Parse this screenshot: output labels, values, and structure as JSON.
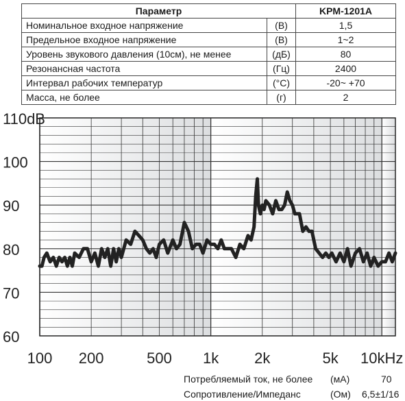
{
  "spec_table": {
    "header_param": "Параметр",
    "header_model": "KPM-1201A",
    "rows": [
      {
        "param": "Номинальное входное напряжение",
        "unit": "(В)",
        "value": "1,5"
      },
      {
        "param": "Предельное входное напряжение",
        "unit": "(В)",
        "value": "1~2"
      },
      {
        "param": "Уровень звукового давления (10см), не менее",
        "unit": "(дБ)",
        "value": "80"
      },
      {
        "param": "Резонансная частота",
        "unit": "(Гц)",
        "value": "2400"
      },
      {
        "param": "Интервал рабочих температур",
        "unit": "(°C)",
        "value": "-20~ +70"
      },
      {
        "param": "Масса, не более",
        "unit": "(г)",
        "value": "2"
      }
    ]
  },
  "chart_data": {
    "type": "line",
    "x_scale": "log",
    "xlim": [
      100,
      12000
    ],
    "ylim": [
      60,
      110
    ],
    "grid": true,
    "y_ticks": [
      {
        "value": 110,
        "label": "110dB"
      },
      {
        "value": 100,
        "label": "100"
      },
      {
        "value": 90,
        "label": "90"
      },
      {
        "value": 80,
        "label": "80"
      },
      {
        "value": 70,
        "label": "70"
      },
      {
        "value": 60,
        "label": "60"
      }
    ],
    "x_ticks": [
      {
        "value": 100,
        "label": "100"
      },
      {
        "value": 200,
        "label": "200"
      },
      {
        "value": 500,
        "label": "500"
      },
      {
        "value": 1000,
        "label": "1k"
      },
      {
        "value": 2000,
        "label": "2k"
      },
      {
        "value": 5000,
        "label": "5k"
      },
      {
        "value": 10000,
        "label": "10kHz"
      }
    ],
    "series": [
      {
        "line_color": "#222222",
        "x": [
          100,
          103,
          106,
          110,
          115,
          120,
          125,
          130,
          135,
          140,
          145,
          150,
          155,
          160,
          170,
          180,
          190,
          200,
          210,
          220,
          230,
          240,
          250,
          260,
          270,
          280,
          290,
          300,
          320,
          340,
          360,
          380,
          400,
          420,
          440,
          460,
          480,
          500,
          530,
          560,
          600,
          630,
          660,
          700,
          740,
          780,
          820,
          860,
          900,
          950,
          1000,
          1050,
          1100,
          1150,
          1200,
          1260,
          1320,
          1400,
          1480,
          1560,
          1650,
          1720,
          1790,
          1830,
          1870,
          1900,
          1950,
          2000,
          2050,
          2100,
          2200,
          2300,
          2400,
          2500,
          2600,
          2700,
          2800,
          2900,
          3000,
          3100,
          3200,
          3300,
          3450,
          3600,
          3750,
          3900,
          4100,
          4300,
          4500,
          4700,
          4900,
          5100,
          5400,
          5700,
          6000,
          6300,
          6600,
          7000,
          7400,
          7800,
          8200,
          8600,
          9000,
          9500,
          10000,
          10500,
          11000,
          11500,
          12000
        ],
        "y": [
          76,
          76,
          78,
          79,
          77,
          78,
          76,
          78,
          77,
          78,
          76,
          78,
          76,
          79,
          78,
          80,
          80,
          77,
          79,
          76,
          80,
          78,
          80,
          76,
          80,
          77,
          80,
          78,
          82,
          81,
          84,
          83,
          82,
          80,
          79,
          80,
          78,
          81,
          82,
          79,
          82,
          80,
          81,
          86,
          84,
          80,
          81,
          81,
          79,
          82,
          81,
          81,
          80,
          82,
          80,
          80,
          80,
          78,
          81,
          80,
          83,
          82,
          85,
          92,
          96,
          90,
          88,
          90,
          89,
          91,
          90,
          88,
          91,
          89,
          89,
          90,
          93,
          91,
          90,
          88,
          88,
          88,
          84,
          85,
          84,
          84,
          80,
          79,
          78,
          79,
          78,
          79,
          77,
          79,
          77,
          80,
          76,
          79,
          80,
          77,
          79,
          76,
          78,
          76,
          77,
          77,
          79,
          77,
          79
        ]
      }
    ]
  },
  "footer": [
    {
      "label": "Потребляемый ток, не более",
      "unit": "(мА)",
      "value": "70"
    },
    {
      "label": "Сопротивление/Импеданс",
      "unit": "(Ом)",
      "value": "6,5±1/16"
    }
  ]
}
